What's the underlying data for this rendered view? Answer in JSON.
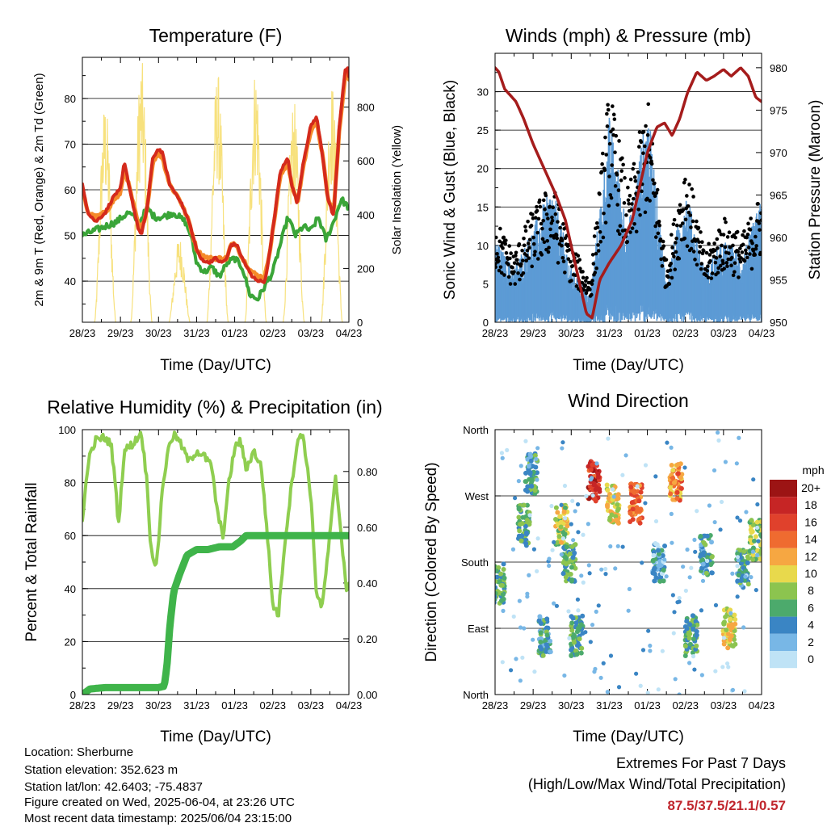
{
  "chart_data": [
    {
      "type": "line",
      "title": "Temperature (F)",
      "xlabel": "Time (Day/UTC)",
      "ylabel": "2m & 9m T (Red, Orange) & 2m Td (Green)",
      "y2label": "Solar Insolation (Yellow)",
      "xticks": [
        "28/23",
        "29/23",
        "30/23",
        "31/23",
        "01/23",
        "02/23",
        "03/23",
        "04/23"
      ],
      "xlim": [
        0,
        7
      ],
      "ylim": [
        31,
        89
      ],
      "yticks": [
        40,
        50,
        60,
        70,
        80
      ],
      "y2lim": [
        0,
        985
      ],
      "y2ticks": [
        0,
        200,
        400,
        600,
        800
      ],
      "grid": true,
      "series": [
        {
          "name": "2m T",
          "color": "#d42a1c",
          "x": [
            0,
            0.15,
            0.35,
            0.6,
            0.85,
            1.0,
            1.1,
            1.25,
            1.45,
            1.55,
            1.7,
            1.85,
            2.0,
            2.1,
            2.3,
            2.55,
            2.8,
            3.0,
            3.1,
            3.3,
            3.5,
            3.65,
            3.8,
            3.9,
            4.05,
            4.2,
            4.45,
            4.65,
            4.8,
            4.95,
            5.2,
            5.4,
            5.5,
            5.65,
            5.8,
            6.0,
            6.15,
            6.3,
            6.45,
            6.6,
            6.75,
            6.9,
            6.98,
            7.0
          ],
          "values": [
            61,
            55,
            53,
            55,
            59,
            60,
            66,
            60,
            52,
            50,
            56,
            67,
            69,
            68,
            61,
            58,
            53,
            47,
            45,
            44,
            45,
            44,
            45,
            48,
            48,
            45,
            41,
            40,
            40,
            48,
            64,
            67,
            61,
            57,
            66,
            74,
            76,
            68,
            58,
            54,
            74,
            86,
            87,
            85
          ]
        },
        {
          "name": "9m T",
          "color": "#f58a2a",
          "x": [
            0,
            0.15,
            0.35,
            0.6,
            0.85,
            1.0,
            1.1,
            1.25,
            1.45,
            1.55,
            1.7,
            1.85,
            2.0,
            2.1,
            2.3,
            2.55,
            2.8,
            3.0,
            3.1,
            3.3,
            3.5,
            3.65,
            3.8,
            3.9,
            4.05,
            4.2,
            4.45,
            4.65,
            4.8,
            4.95,
            5.2,
            5.4,
            5.5,
            5.65,
            5.8,
            6.0,
            6.15,
            6.3,
            6.45,
            6.6,
            6.75,
            6.9,
            6.98,
            7.0
          ],
          "values": [
            60,
            55,
            54,
            55,
            58,
            59,
            65,
            60,
            53,
            51,
            56,
            66,
            68,
            67,
            61,
            58,
            53,
            47,
            46,
            45,
            45,
            45,
            45,
            48,
            48,
            45,
            42,
            41,
            41,
            48,
            63,
            66,
            61,
            57,
            65,
            73,
            75,
            68,
            58,
            55,
            73,
            85,
            86,
            84
          ]
        },
        {
          "name": "2m Td",
          "color": "#3aa538",
          "x": [
            0,
            0.3,
            0.6,
            0.9,
            1.2,
            1.5,
            1.7,
            1.9,
            2.1,
            2.4,
            2.7,
            2.85,
            3.0,
            3.2,
            3.4,
            3.6,
            3.8,
            4.0,
            4.2,
            4.4,
            4.6,
            4.8,
            5.0,
            5.2,
            5.4,
            5.6,
            5.8,
            6.0,
            6.2,
            6.4,
            6.6,
            6.8,
            7.0
          ],
          "values": [
            50,
            51,
            52,
            53,
            55,
            53,
            56,
            54,
            54,
            55,
            53,
            50,
            44,
            42,
            43,
            41,
            44,
            45,
            43,
            37,
            36,
            39,
            42,
            48,
            54,
            50,
            52,
            51,
            54,
            49,
            53,
            58,
            56
          ]
        },
        {
          "name": "Solar Insolation",
          "color": "#f7e17d",
          "axis": "y2",
          "peaks": [
            {
              "x": 0.6,
              "y": 830
            },
            {
              "x": 1.55,
              "y": 985
            },
            {
              "x": 2.55,
              "y": 320
            },
            {
              "x": 3.55,
              "y": 940
            },
            {
              "x": 4.55,
              "y": 960
            },
            {
              "x": 5.55,
              "y": 830
            },
            {
              "x": 6.55,
              "y": 900
            }
          ]
        }
      ]
    },
    {
      "type": "scatter",
      "title": "Winds (mph) & Pressure (mb)",
      "xlabel": "Time (Day/UTC)",
      "ylabel": "Sonic Wind & Gust (Blue, Black)",
      "y2label": "Station Pressure (Maroon)",
      "xticks": [
        "28/23",
        "29/23",
        "30/23",
        "31/23",
        "01/23",
        "02/23",
        "03/23",
        "04/23"
      ],
      "xlim": [
        0,
        7
      ],
      "ylim": [
        0,
        35
      ],
      "yticks": [
        0,
        5,
        10,
        15,
        20,
        25,
        30
      ],
      "y2lim": [
        950,
        981.7
      ],
      "y2ticks": [
        950,
        955,
        960,
        965,
        970,
        975,
        980
      ],
      "grid": true,
      "series": [
        {
          "name": "Sonic Wind",
          "color": "#5c9bd5",
          "x": [
            0,
            0.5,
            1.0,
            1.5,
            2.0,
            2.5,
            3.0,
            3.5,
            4.0,
            4.5,
            5.0,
            5.5,
            6.0,
            6.5,
            7.0
          ],
          "values": [
            6,
            4,
            7,
            10,
            4,
            2,
            15,
            7,
            16,
            3,
            10,
            4,
            6,
            5,
            9
          ]
        },
        {
          "name": "Gust",
          "color": "#000000",
          "x": [
            0,
            0.5,
            1.0,
            1.5,
            2.0,
            2.5,
            3.0,
            3.5,
            4.0,
            4.5,
            5.0,
            5.5,
            6.0,
            6.5,
            7.0
          ],
          "values": [
            12,
            8,
            13,
            16,
            9,
            5,
            27,
            15,
            26,
            7,
            19,
            8,
            12,
            10,
            15
          ]
        },
        {
          "name": "Station Pressure",
          "color": "#a51c1c",
          "axis": "y2",
          "x": [
            0,
            0.1,
            0.25,
            0.55,
            0.75,
            1.0,
            1.3,
            1.6,
            1.85,
            2.05,
            2.25,
            2.4,
            2.55,
            2.75,
            3.0,
            3.3,
            3.6,
            3.8,
            4.0,
            4.25,
            4.45,
            4.65,
            4.85,
            5.05,
            5.3,
            5.55,
            5.75,
            6.0,
            6.2,
            6.45,
            6.65,
            6.85,
            7.0
          ],
          "values": [
            980,
            979.5,
            977.5,
            976,
            974,
            971,
            968,
            965,
            962,
            958,
            954,
            951,
            950.5,
            955,
            957,
            959,
            962,
            966,
            970,
            973,
            973.5,
            972,
            974,
            977,
            979.5,
            978.5,
            979,
            979.8,
            979,
            980,
            979,
            976.5,
            976
          ]
        }
      ]
    },
    {
      "type": "line",
      "title": "Relative Humidity (%) & Precipitation (in)",
      "xlabel": "Time (Day/UTC)",
      "ylabel": "Percent & Total Rainfall",
      "xticks": [
        "28/23",
        "29/23",
        "30/23",
        "31/23",
        "01/23",
        "02/23",
        "03/23",
        "04/23"
      ],
      "xlim": [
        0,
        7
      ],
      "ylim": [
        0,
        100
      ],
      "yticks": [
        0,
        20,
        40,
        60,
        80,
        100
      ],
      "y2lim": [
        0,
        0.95
      ],
      "y2ticks": [
        "0.00",
        "0.20",
        "0.40",
        "0.60",
        "0.80"
      ],
      "grid": true,
      "series": [
        {
          "name": "Relative Humidity",
          "color": "#8fce50",
          "x": [
            0,
            0.15,
            0.35,
            0.55,
            0.75,
            0.85,
            0.95,
            1.1,
            1.35,
            1.55,
            1.7,
            1.8,
            1.95,
            2.1,
            2.3,
            2.45,
            2.6,
            2.8,
            3.0,
            3.2,
            3.4,
            3.55,
            3.7,
            3.85,
            4.0,
            4.15,
            4.3,
            4.5,
            4.7,
            4.85,
            5.0,
            5.15,
            5.3,
            5.5,
            5.65,
            5.8,
            6.0,
            6.15,
            6.3,
            6.5,
            6.65,
            6.8,
            6.95,
            7.0
          ],
          "values": [
            65,
            88,
            96,
            97,
            95,
            82,
            64,
            92,
            95,
            99,
            80,
            55,
            48,
            78,
            96,
            98,
            94,
            88,
            92,
            90,
            86,
            68,
            60,
            80,
            93,
            96,
            85,
            92,
            86,
            62,
            34,
            30,
            55,
            80,
            96,
            98,
            75,
            38,
            33,
            60,
            82,
            60,
            38,
            41
          ]
        },
        {
          "name": "Total Rainfall",
          "color": "#3fb44a",
          "axis": "y2",
          "x": [
            0,
            0.1,
            0.2,
            0.6,
            1.0,
            1.5,
            2.0,
            2.15,
            2.22,
            2.3,
            2.4,
            2.55,
            2.75,
            3.0,
            3.3,
            3.6,
            3.95,
            4.15,
            4.3,
            4.5,
            5.0,
            5.5,
            6.0,
            6.5,
            7.0
          ],
          "values": [
            0.0,
            0.01,
            0.02,
            0.025,
            0.025,
            0.025,
            0.025,
            0.03,
            0.1,
            0.25,
            0.37,
            0.43,
            0.5,
            0.52,
            0.52,
            0.53,
            0.53,
            0.55,
            0.57,
            0.57,
            0.57,
            0.57,
            0.57,
            0.57,
            0.57
          ]
        }
      ]
    },
    {
      "type": "scatter",
      "title": "Wind Direction",
      "xlabel": "Time (Day/UTC)",
      "ylabel": "Direction (Colored By Speed)",
      "xticks": [
        "28/23",
        "29/23",
        "30/23",
        "31/23",
        "01/23",
        "02/23",
        "03/23",
        "04/23"
      ],
      "xlim": [
        0,
        7
      ],
      "ylim": [
        0,
        360
      ],
      "yticks": [
        "North",
        "East",
        "South",
        "West",
        "North"
      ],
      "grid": true,
      "legend_title": "mph",
      "legend_labels": [
        "20+",
        "18",
        "16",
        "14",
        "12",
        "10",
        "8",
        "6",
        "4",
        "2",
        "0"
      ],
      "legend_colors": [
        "#9c1414",
        "#c62525",
        "#e0412c",
        "#ef6b30",
        "#f6a742",
        "#e8d94c",
        "#8cc44f",
        "#4caa6c",
        "#3a85c4",
        "#78b7e6",
        "#bfe3f6"
      ],
      "clusters": [
        {
          "x": 0.1,
          "dir": 150,
          "speed": 6
        },
        {
          "x": 0.75,
          "dir": 230,
          "speed": 6
        },
        {
          "x": 0.95,
          "dir": 300,
          "speed": 5
        },
        {
          "x": 1.3,
          "dir": 80,
          "speed": 5
        },
        {
          "x": 1.75,
          "dir": 230,
          "speed": 9
        },
        {
          "x": 1.95,
          "dir": 180,
          "speed": 6
        },
        {
          "x": 2.15,
          "dir": 80,
          "speed": 6
        },
        {
          "x": 2.6,
          "dir": 290,
          "speed": 17
        },
        {
          "x": 3.1,
          "dir": 260,
          "speed": 10
        },
        {
          "x": 3.7,
          "dir": 260,
          "speed": 14
        },
        {
          "x": 4.3,
          "dir": 180,
          "speed": 3
        },
        {
          "x": 4.75,
          "dir": 290,
          "speed": 13
        },
        {
          "x": 5.15,
          "dir": 80,
          "speed": 6
        },
        {
          "x": 5.55,
          "dir": 190,
          "speed": 5
        },
        {
          "x": 6.15,
          "dir": 90,
          "speed": 10
        },
        {
          "x": 6.5,
          "dir": 170,
          "speed": 5
        },
        {
          "x": 6.85,
          "dir": 210,
          "speed": 8
        }
      ]
    }
  ],
  "info": {
    "location": "Location: Sherburne",
    "elevation": "Station elevation: 352.623 m",
    "latlon": "Station lat/lon: 42.6403; -75.4837",
    "created": "Figure created on Wed, 2025-06-04, at 23:26 UTC",
    "recent": "Most recent data timestamp: 2025/06/04 23:15:00"
  },
  "extremes": {
    "title": "Extremes For Past 7 Days",
    "subtitle": "(High/Low/Max Wind/Total Precipitation)",
    "values": "87.5/37.5/21.1/0.57",
    "color": "#c0262d"
  }
}
